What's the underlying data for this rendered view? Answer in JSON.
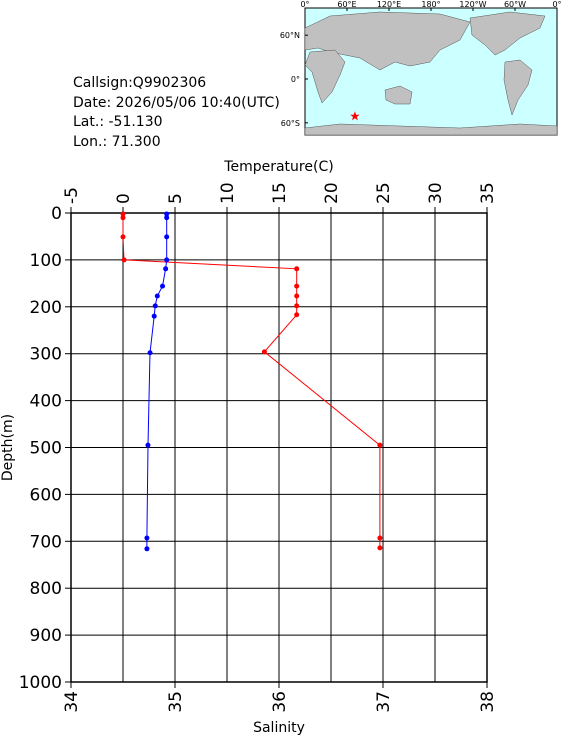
{
  "info": {
    "lines": [
      "Callsign:Q9902306",
      "Date:  2026/05/06 10:40(UTC)",
      "Lat.:  -51.130",
      "Lon.:  71.300"
    ]
  },
  "map": {
    "lon_ticks": [
      {
        "value": 0,
        "label": "0°"
      },
      {
        "value": 60,
        "label": "60°E"
      },
      {
        "value": 120,
        "label": "120°E"
      },
      {
        "value": 180,
        "label": "180°"
      },
      {
        "value": 240,
        "label": "120°W"
      },
      {
        "value": 300,
        "label": "60°W"
      },
      {
        "value": 360,
        "label": "0°"
      }
    ],
    "lat_ticks": [
      {
        "value": 60,
        "label": "60°N"
      },
      {
        "value": 0,
        "label": "0°"
      },
      {
        "value": -60,
        "label": "60°S"
      }
    ],
    "float": {
      "lon": 71.3,
      "lat": -51.13
    }
  },
  "chart_data": {
    "type": "scatter",
    "xlabel": "Temperature(C)",
    "x2label": "Salinity",
    "ylabel": "Depth(m)",
    "xlim": [
      -5,
      35
    ],
    "xticks": [
      -5,
      0,
      5,
      10,
      15,
      20,
      25,
      30,
      35
    ],
    "x2lim": [
      34,
      38
    ],
    "x2ticks": [
      34,
      35,
      36,
      37,
      38
    ],
    "ylim": [
      0,
      1000
    ],
    "y_inverted": true,
    "yticks": [
      0,
      100,
      200,
      300,
      400,
      500,
      600,
      700,
      800,
      900,
      1000
    ],
    "grid": true,
    "series": [
      {
        "color": "#ff0000",
        "axis": "x",
        "x": [
          0.0,
          0.0,
          0.0,
          0.1,
          16.7,
          16.7,
          16.7,
          16.7,
          16.7,
          13.6,
          24.7,
          24.7,
          24.7
        ],
        "y": [
          2,
          10,
          51,
          100,
          119,
          156,
          177,
          198,
          217,
          296,
          495,
          693,
          714
        ]
      },
      {
        "color": "#0000ff",
        "axis": "x2",
        "x": [
          34.92,
          34.92,
          34.92,
          34.92,
          34.91,
          34.88,
          34.83,
          34.81,
          34.8,
          34.76,
          34.74,
          34.73,
          34.73
        ],
        "y": [
          2,
          10,
          51,
          100,
          119,
          156,
          177,
          198,
          220,
          298,
          495,
          693,
          716
        ]
      }
    ]
  }
}
